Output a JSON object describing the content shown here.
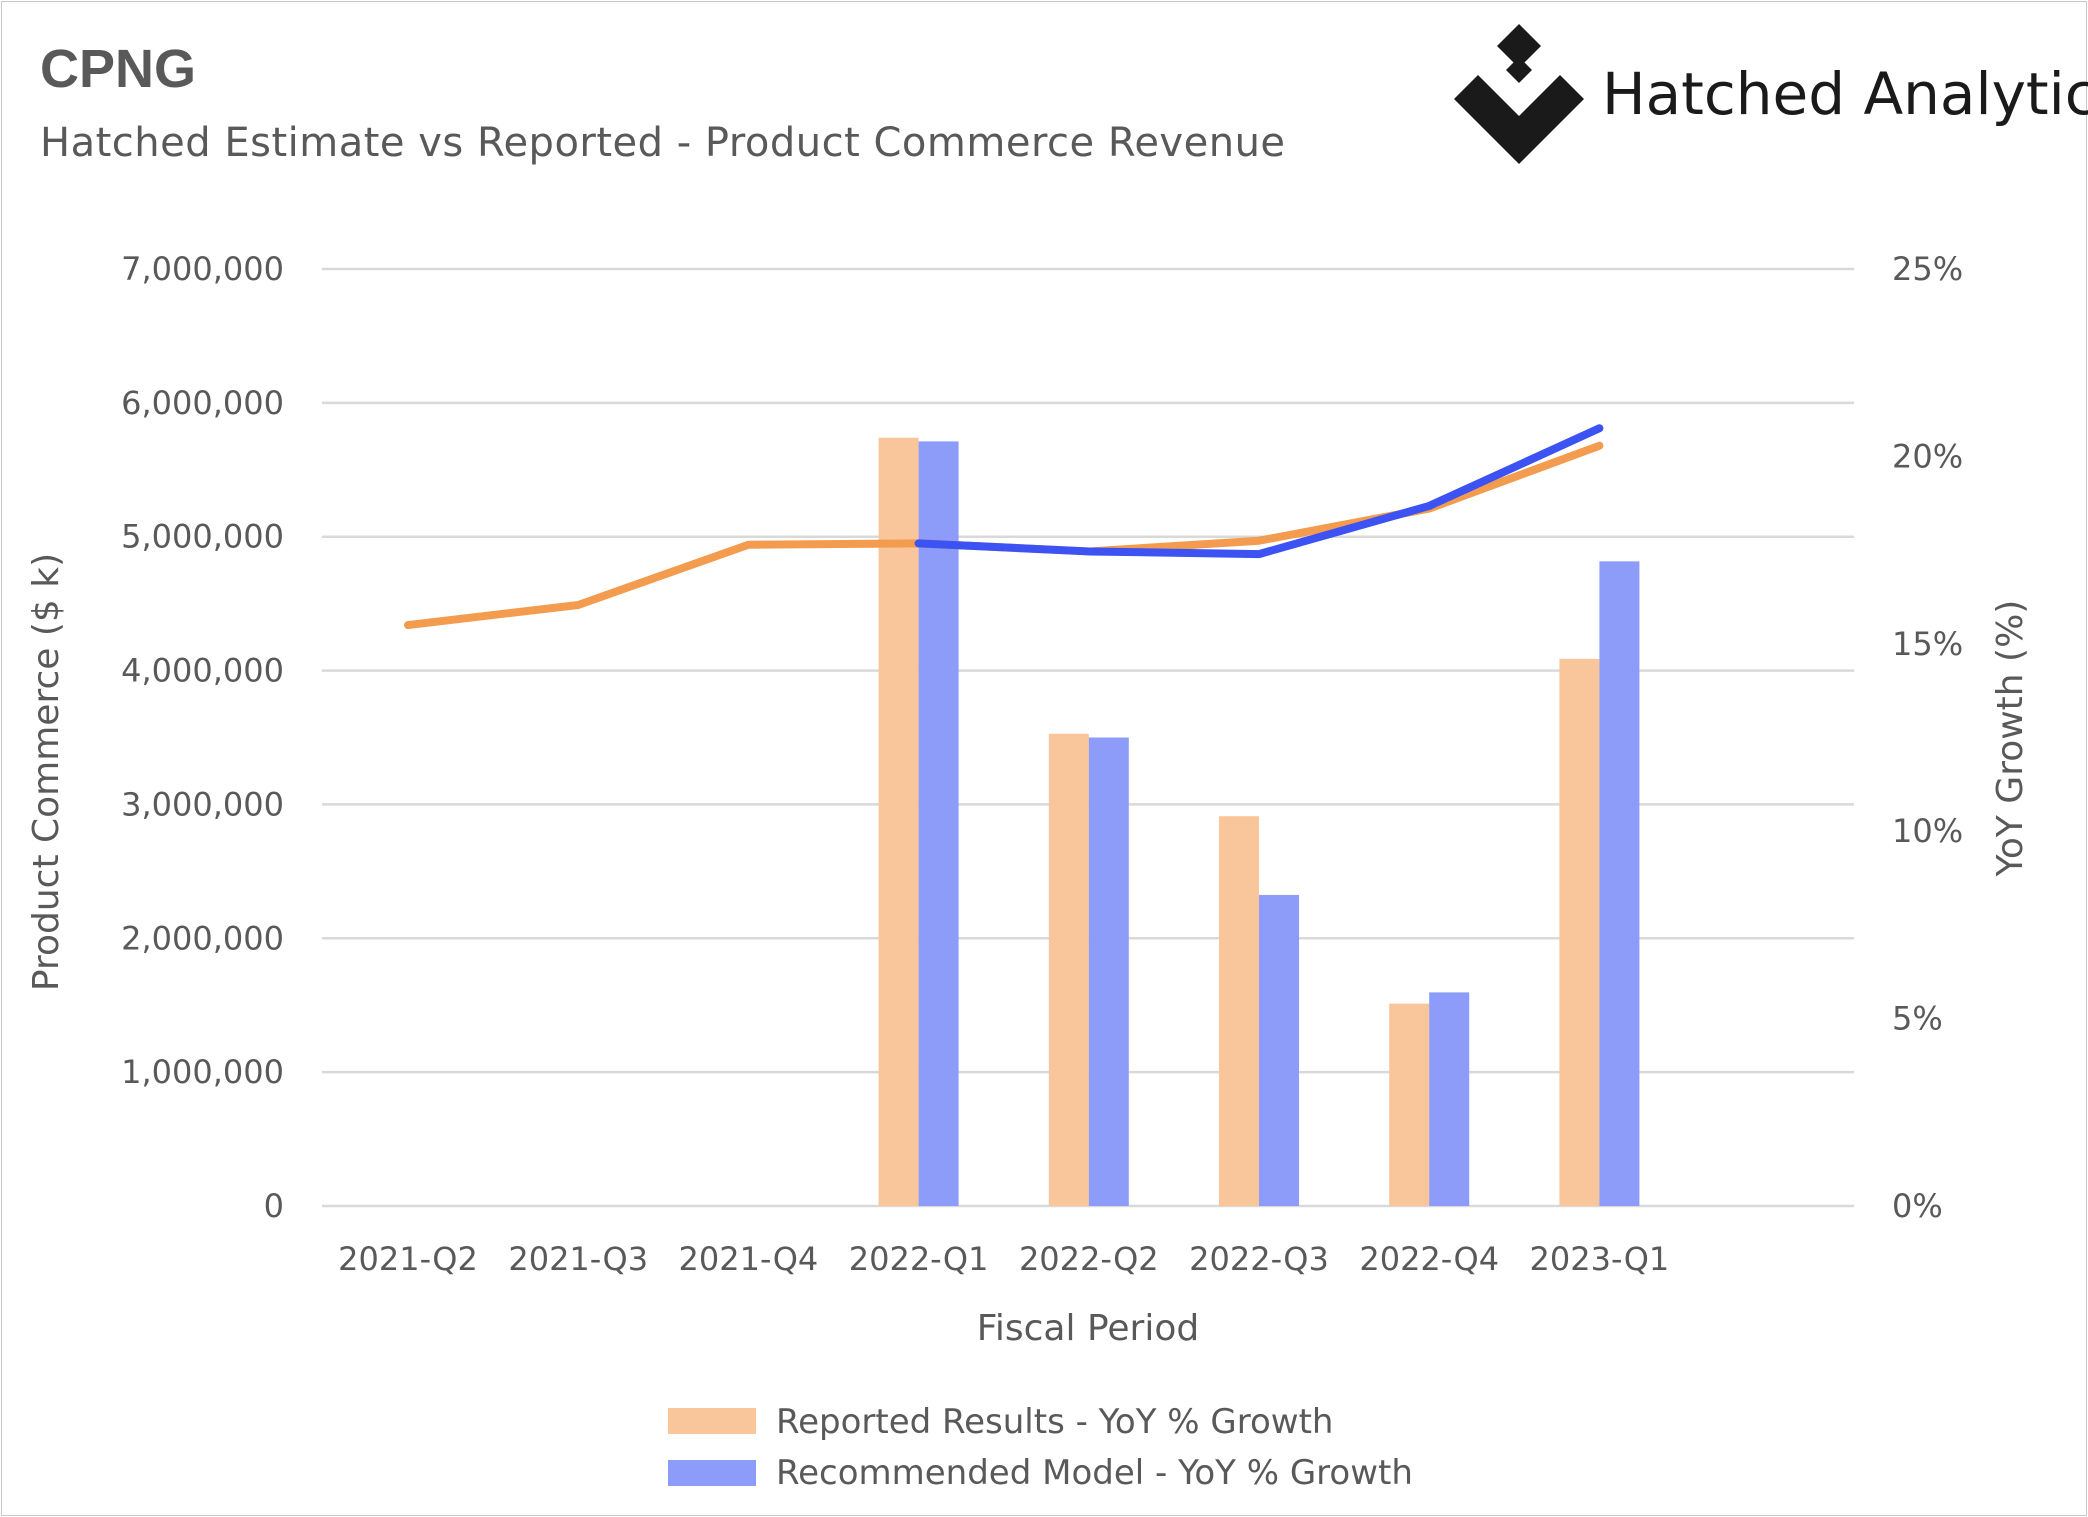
{
  "header": {
    "ticker": "CPNG",
    "subtitle": "Hatched Estimate vs Reported - Product Commerce Revenue"
  },
  "brand": {
    "name": "Hatched Analytics",
    "logo_icon": "hatched-diamond-logo-icon",
    "logo_color": "#1a1a1a"
  },
  "chart_data": {
    "type": "bar",
    "categories": [
      "2021-Q2",
      "2021-Q3",
      "2021-Q4",
      "2022-Q1",
      "2022-Q2",
      "2022-Q3",
      "2022-Q4",
      "2023-Q1"
    ],
    "xlabel": "Fiscal Period",
    "ylabel": "Product Commerce ($ k)",
    "y2label": "YoY Growth (%)",
    "ylim": [
      0,
      7000000
    ],
    "y2lim": [
      0,
      25
    ],
    "yticks": [
      0,
      1000000,
      2000000,
      3000000,
      4000000,
      5000000,
      6000000,
      7000000
    ],
    "ytick_labels": [
      "0",
      "1,000,000",
      "2,000,000",
      "3,000,000",
      "4,000,000",
      "5,000,000",
      "6,000,000",
      "7,000,000"
    ],
    "y2ticks": [
      0,
      5,
      10,
      15,
      20,
      25
    ],
    "y2tick_labels": [
      "0%",
      "5%",
      "10%",
      "15%",
      "20%",
      "25%"
    ],
    "grid": true,
    "legend": "bottom",
    "bar_series": [
      {
        "name": "Reported Results - YoY % Growth",
        "axis": "right",
        "color": "#f8c69a",
        "values": [
          null,
          null,
          null,
          20.5,
          12.6,
          10.4,
          5.4,
          14.6
        ]
      },
      {
        "name": "Recommended Model - YoY % Growth",
        "axis": "right",
        "color": "#8c9cf8",
        "values": [
          null,
          null,
          null,
          20.4,
          12.5,
          8.3,
          5.7,
          17.2
        ]
      }
    ],
    "line_series": [
      {
        "axis": "left",
        "color": "#f39c4f",
        "values": [
          4340000,
          4490000,
          4940000,
          4950000,
          4890000,
          4970000,
          5210000,
          5680000
        ]
      },
      {
        "axis": "left",
        "color": "#3d52f2",
        "values": [
          null,
          null,
          null,
          4950000,
          4890000,
          4870000,
          5230000,
          5810000
        ]
      }
    ]
  }
}
